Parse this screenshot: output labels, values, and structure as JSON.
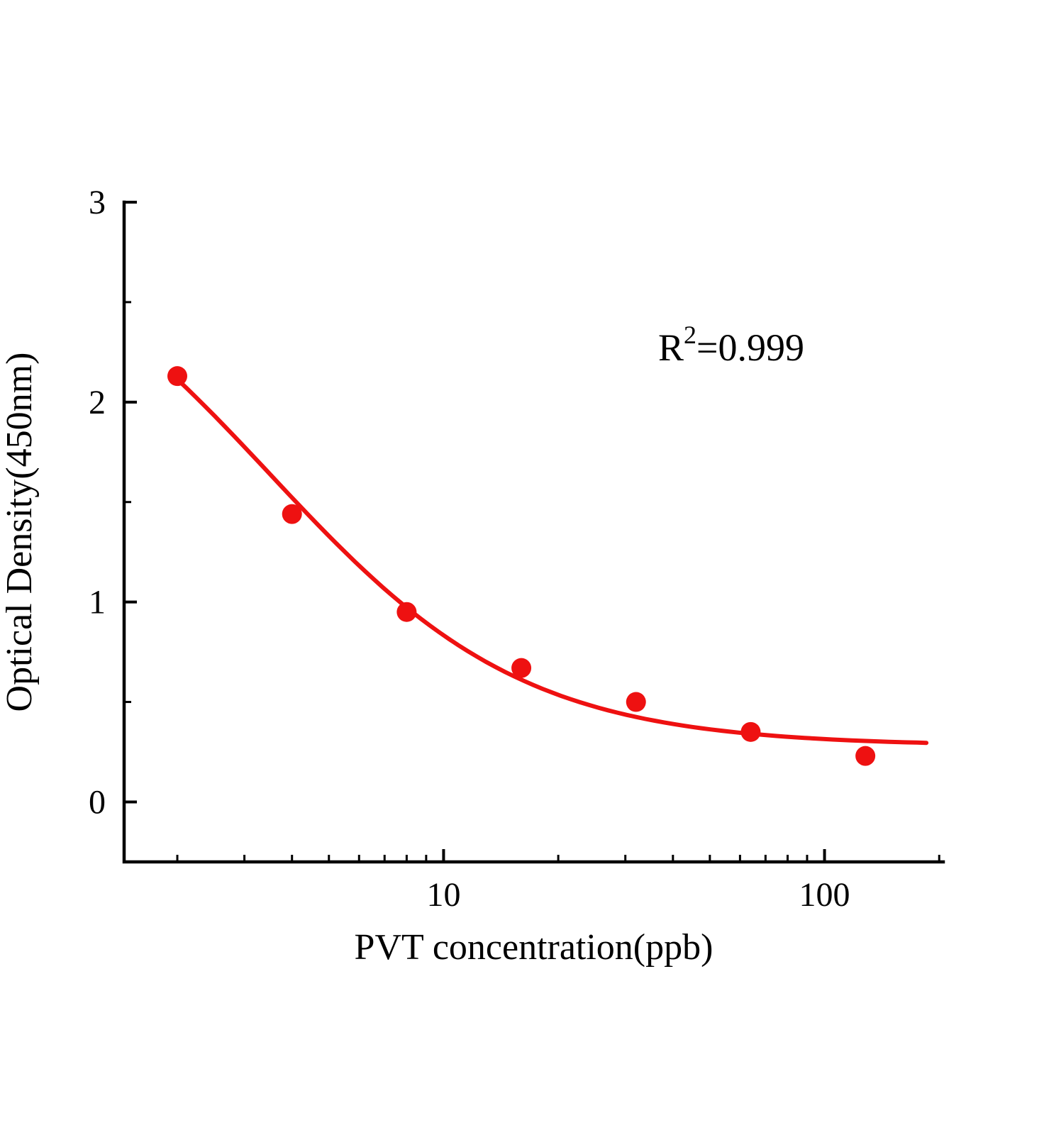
{
  "page": {
    "background": "#ffffff"
  },
  "chart_data": {
    "type": "scatter",
    "title": "",
    "xlabel": "PVT concentration(ppb)",
    "ylabel": "Optical Density(450nm)",
    "x_scale": "log",
    "xlim": [
      1.45,
      205
    ],
    "ylim": [
      -0.3,
      3
    ],
    "x_ticks": [
      "10",
      "100"
    ],
    "x_minor_ticks": [
      2,
      3,
      4,
      5,
      6,
      7,
      8,
      9,
      20,
      30,
      40,
      50,
      60,
      70,
      80,
      90,
      200
    ],
    "y_ticks": [
      "0",
      "1",
      "2",
      "3"
    ],
    "y_minor_ticks": [
      0.5,
      1.5,
      2.5
    ],
    "x": [
      2,
      4,
      8,
      16,
      32,
      64,
      128
    ],
    "y": [
      2.13,
      1.44,
      0.95,
      0.67,
      0.5,
      0.35,
      0.23
    ],
    "point_color": "#ee1111",
    "line_color": "#ee1111",
    "axis_color": "#000000",
    "fit": {
      "model": "4PL",
      "a": 3.0,
      "b": 1.3,
      "c": 3.5,
      "d": 0.28,
      "x_start": 2,
      "x_end": 185
    },
    "annotation": {
      "r": "R",
      "exponent": "2",
      "value": "=0.999",
      "text": "R²=0.999"
    },
    "grid": "off",
    "legend": "none"
  }
}
